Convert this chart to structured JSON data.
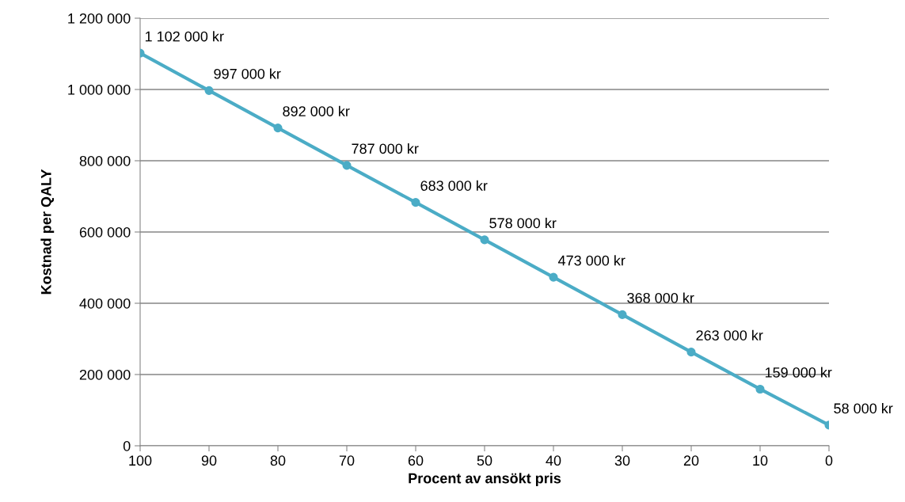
{
  "chart_data": {
    "type": "line",
    "xlabel": "Procent av ansökt pris",
    "ylabel": "Kostnad per QALY",
    "categories": [
      "100",
      "90",
      "80",
      "70",
      "60",
      "50",
      "40",
      "30",
      "20",
      "10",
      "0"
    ],
    "series": [
      {
        "color": "#4bacc6",
        "values": [
          1102000,
          997000,
          892000,
          787000,
          683000,
          578000,
          473000,
          368000,
          263000,
          159000,
          58000
        ],
        "value_labels": [
          "1 102 000 kr",
          "997 000 kr",
          "892 000 kr",
          "787 000 kr",
          "683 000 kr",
          "578 000 kr",
          "473 000 kr",
          "368 000 kr",
          "263 000 kr",
          "159 000 kr",
          "58 000 kr"
        ]
      }
    ],
    "ylim": [
      0,
      1200000
    ],
    "yticks": [
      {
        "value": 0,
        "label": "0"
      },
      {
        "value": 200000,
        "label": "200 000"
      },
      {
        "value": 400000,
        "label": "400 000"
      },
      {
        "value": 600000,
        "label": "600 000"
      },
      {
        "value": 800000,
        "label": "800 000"
      },
      {
        "value": 1000000,
        "label": "1 000 000"
      },
      {
        "value": 1200000,
        "label": "1 200 000"
      }
    ],
    "grid": "y",
    "marker": "circle",
    "line_style": "solid",
    "legend": false
  }
}
